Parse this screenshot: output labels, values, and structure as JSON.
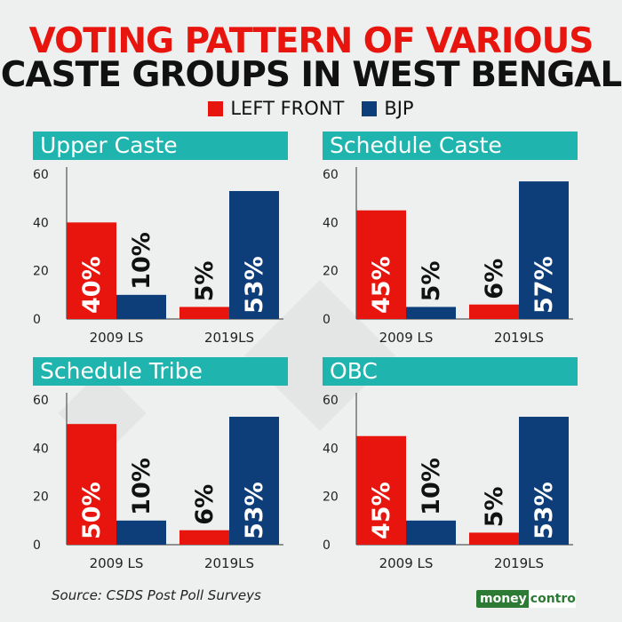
{
  "title": {
    "line1": "VOTING PATTERN OF VARIOUS",
    "line2": "CASTE GROUPS IN WEST BENGAL"
  },
  "legend": [
    {
      "label": "LEFT FRONT",
      "color": "#e8150f"
    },
    {
      "label": "BJP",
      "color": "#0d3e7a"
    }
  ],
  "colors": {
    "left_front": "#e8150f",
    "bjp": "#0d3e7a",
    "header": "#1fb5ae",
    "axis": "#333333"
  },
  "chart_data": [
    {
      "type": "bar",
      "title": "Upper Caste",
      "categories": [
        "2009 LS",
        "2019LS"
      ],
      "series": [
        {
          "name": "LEFT FRONT",
          "values": [
            40,
            5
          ],
          "labels": [
            "40%",
            "5%"
          ]
        },
        {
          "name": "BJP",
          "values": [
            10,
            53
          ],
          "labels": [
            "10%",
            "53%"
          ]
        }
      ],
      "yticks": [
        0,
        20,
        40,
        60
      ],
      "ylim": [
        0,
        60
      ]
    },
    {
      "type": "bar",
      "title": "Schedule Caste",
      "categories": [
        "2009 LS",
        "2019LS"
      ],
      "series": [
        {
          "name": "LEFT FRONT",
          "values": [
            45,
            6
          ],
          "labels": [
            "45%",
            "6%"
          ]
        },
        {
          "name": "BJP",
          "values": [
            5,
            57
          ],
          "labels": [
            "5%",
            "57%"
          ]
        }
      ],
      "yticks": [
        0,
        20,
        40,
        60
      ],
      "ylim": [
        0,
        60
      ]
    },
    {
      "type": "bar",
      "title": "Schedule Tribe",
      "categories": [
        "2009 LS",
        "2019LS"
      ],
      "series": [
        {
          "name": "LEFT FRONT",
          "values": [
            50,
            6
          ],
          "labels": [
            "50%",
            "6%"
          ]
        },
        {
          "name": "BJP",
          "values": [
            10,
            53
          ],
          "labels": [
            "10%",
            "53%"
          ]
        }
      ],
      "yticks": [
        0,
        20,
        40,
        60
      ],
      "ylim": [
        0,
        60
      ]
    },
    {
      "type": "bar",
      "title": "OBC",
      "categories": [
        "2009 LS",
        "2019LS"
      ],
      "series": [
        {
          "name": "LEFT FRONT",
          "values": [
            45,
            5
          ],
          "labels": [
            "45%",
            "5%"
          ]
        },
        {
          "name": "BJP",
          "values": [
            10,
            53
          ],
          "labels": [
            "10%",
            "53%"
          ]
        }
      ],
      "yticks": [
        0,
        20,
        40,
        60
      ],
      "ylim": [
        0,
        60
      ]
    }
  ],
  "source": "Source: CSDS Post Poll Surveys",
  "logo": {
    "part1": "money",
    "part2": "control"
  }
}
